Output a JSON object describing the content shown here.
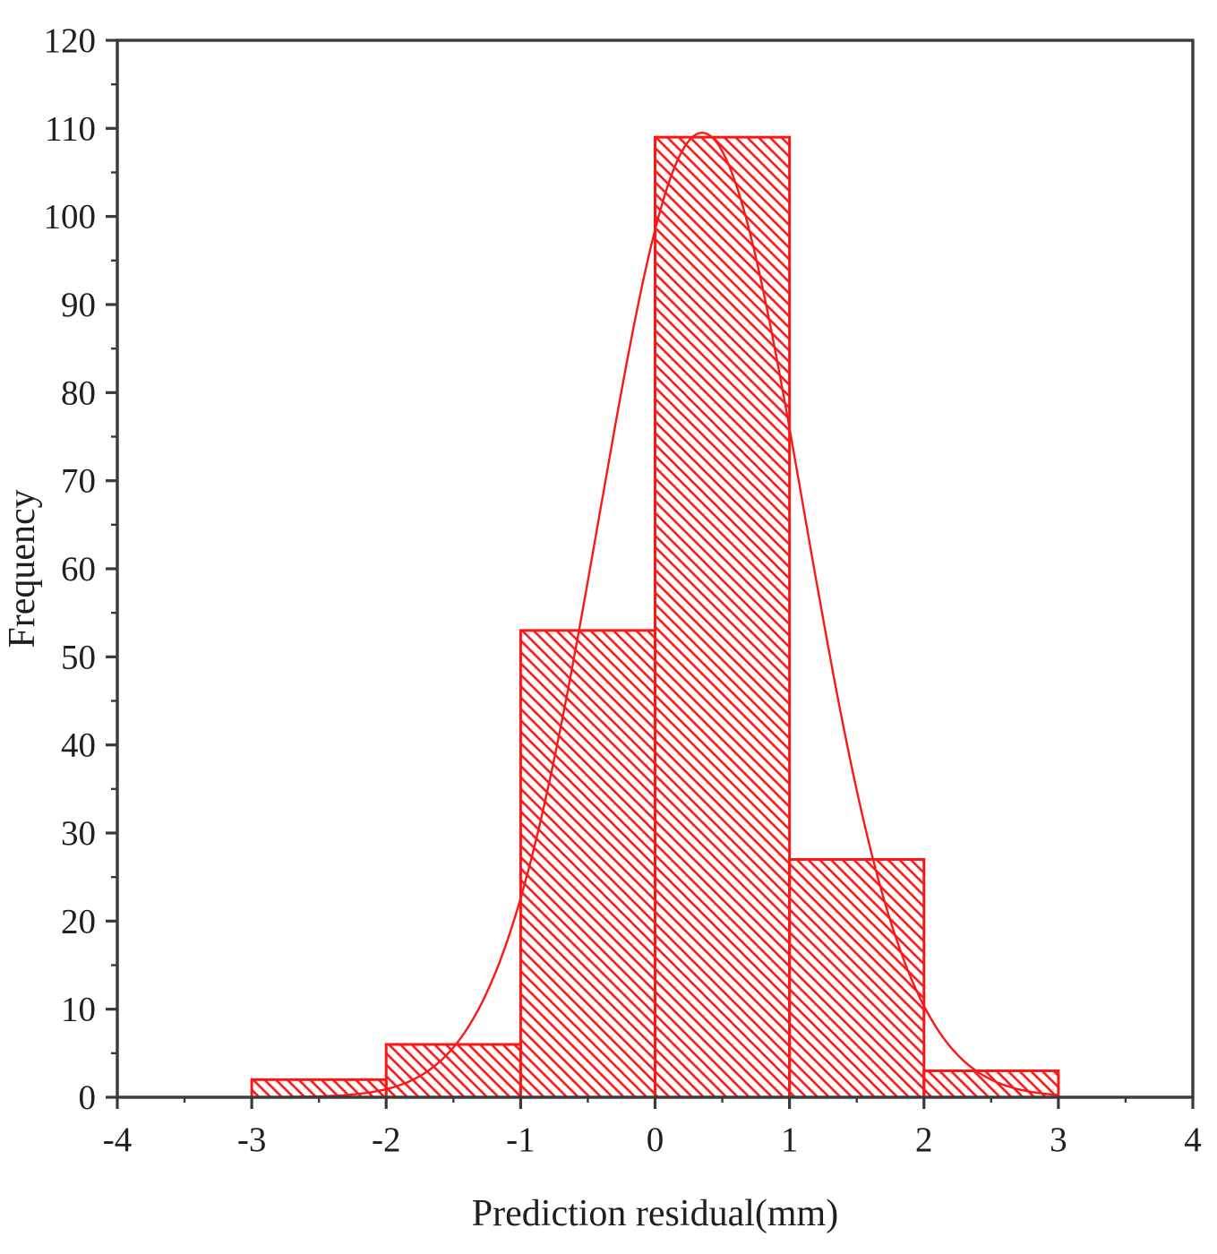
{
  "chart_data": {
    "type": "bar",
    "subtype": "histogram-with-fit",
    "title": "",
    "xlabel": "Prediction residual(mm)",
    "ylabel": "Frequency",
    "xlim": [
      -4,
      4
    ],
    "ylim": [
      0,
      120
    ],
    "grid": false,
    "legend": null,
    "x_major_ticks": [
      -4,
      -3,
      -2,
      -1,
      0,
      1,
      2,
      3,
      4
    ],
    "x_major_tick_labels": [
      "-4",
      "-3",
      "-2",
      "-1",
      "0",
      "1",
      "2",
      "3",
      "4"
    ],
    "x_minor_step": 0.5,
    "y_major_ticks": [
      0,
      10,
      20,
      30,
      40,
      50,
      60,
      70,
      80,
      90,
      100,
      110,
      120
    ],
    "y_major_tick_labels": [
      "0",
      "10",
      "20",
      "30",
      "40",
      "50",
      "60",
      "70",
      "80",
      "90",
      "100",
      "110",
      "120"
    ],
    "y_minor_step": 5,
    "bins": [
      {
        "x0": -3,
        "x1": -2,
        "count": 2
      },
      {
        "x0": -2,
        "x1": -1,
        "count": 6
      },
      {
        "x0": -1,
        "x1": 0,
        "count": 53
      },
      {
        "x0": 0,
        "x1": 1,
        "count": 109
      },
      {
        "x0": 1,
        "x1": 2,
        "count": 27
      },
      {
        "x0": 2,
        "x1": 3,
        "count": 3
      }
    ],
    "fit_curve": {
      "type": "gaussian",
      "amplitude": 109.5,
      "mean": 0.35,
      "sigma": 0.76,
      "x_start": -3,
      "x_end": 3
    },
    "colors": {
      "bar_edge": "#fc1717",
      "bar_hatch": "#fc1717",
      "curve": "#fc1717",
      "axis": "#3a3a3a",
      "text": "#1f1f1f",
      "background": "#ffffff"
    }
  }
}
